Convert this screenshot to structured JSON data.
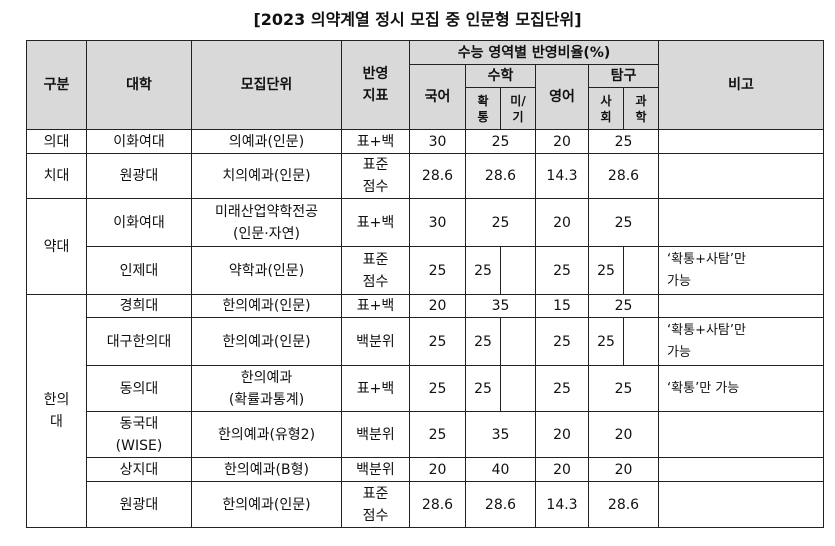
{
  "title": "[2023 의약계열 정시 모집 중 인문형 모집단위]",
  "headers": {
    "category": "구분",
    "university": "대학",
    "unit": "모집단위",
    "index": "반영\n지표",
    "ratio": "수능 영역별 반영비율(%)",
    "korean": "국어",
    "math": "수학",
    "math_prob": "확\n통",
    "math_calc": "미/\n기",
    "english": "영어",
    "inquiry": "탐구",
    "social": "사\n회",
    "science": "과\n학",
    "notes": "비고"
  },
  "categories": {
    "medical": "의대",
    "dental": "치대",
    "pharmacy": "약대",
    "oriental": "한의\n대"
  },
  "rows": [
    {
      "univ": "이화여대",
      "unit": "의예과(인문)",
      "index": "표+백",
      "korean": "30",
      "math": "25",
      "english": "20",
      "inquiry": "25",
      "note": ""
    },
    {
      "univ": "원광대",
      "unit": "치의예과(인문)",
      "index": "표준\n점수",
      "korean": "28.6",
      "math": "28.6",
      "english": "14.3",
      "inquiry": "28.6",
      "note": ""
    },
    {
      "univ": "이화여대",
      "unit": "미래산업약학전공\n(인문·자연)",
      "index": "표+백",
      "korean": "30",
      "math": "25",
      "english": "20",
      "inquiry": "25",
      "note": ""
    },
    {
      "univ": "인제대",
      "unit": "약학과(인문)",
      "index": "표준\n점수",
      "korean": "25",
      "math": "25",
      "english": "25",
      "inquiry": "25",
      "note": "‘확통+사탐’만\n가능"
    },
    {
      "univ": "경희대",
      "unit": "한의예과(인문)",
      "index": "표+백",
      "korean": "20",
      "math": "35",
      "english": "15",
      "inquiry": "25",
      "note": ""
    },
    {
      "univ": "대구한의대",
      "unit": "한의예과(인문)",
      "index": "백분위",
      "korean": "25",
      "math": "25",
      "english": "25",
      "inquiry": "25",
      "note": "‘확통+사탐’만\n가능"
    },
    {
      "univ": "동의대",
      "unit": "한의예과\n(확률과통계)",
      "index": "표+백",
      "korean": "25",
      "math": "25",
      "english": "25",
      "inquiry": "25",
      "note": "‘확통’만 가능"
    },
    {
      "univ": "동국대\n(WISE)",
      "unit": "한의예과(유형2)",
      "index": "백분위",
      "korean": "25",
      "math": "35",
      "english": "20",
      "inquiry": "20",
      "note": ""
    },
    {
      "univ": "상지대",
      "unit": "한의예과(B형)",
      "index": "백분위",
      "korean": "20",
      "math": "40",
      "english": "20",
      "inquiry": "20",
      "note": ""
    },
    {
      "univ": "원광대",
      "unit": "한의예과(인문)",
      "index": "표준\n점수",
      "korean": "28.6",
      "math": "28.6",
      "english": "14.3",
      "inquiry": "28.6",
      "note": ""
    }
  ]
}
